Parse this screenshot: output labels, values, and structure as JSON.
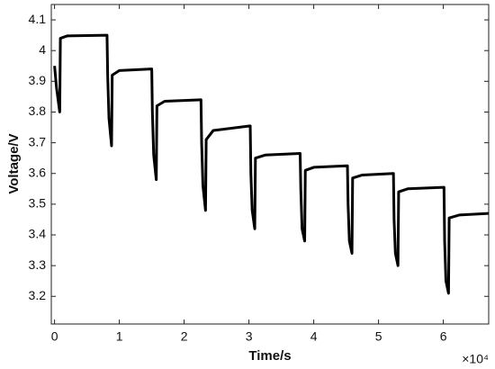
{
  "chart_data": {
    "type": "line",
    "x_label": "Time/s",
    "y_label": "Voltage/V",
    "x_multiplier": "×10⁴",
    "x": [
      0,
      0.03,
      0.08,
      0.09,
      0.2,
      0.81,
      0.82,
      0.84,
      0.88,
      0.89,
      1.0,
      1.5,
      1.51,
      1.53,
      1.57,
      1.58,
      1.7,
      2.26,
      2.27,
      2.29,
      2.33,
      2.34,
      2.45,
      3.02,
      3.03,
      3.05,
      3.09,
      3.1,
      3.25,
      3.79,
      3.8,
      3.82,
      3.86,
      3.87,
      4.0,
      4.52,
      4.53,
      4.55,
      4.59,
      4.6,
      4.75,
      5.23,
      5.24,
      5.26,
      5.3,
      5.31,
      5.45,
      6.01,
      6.02,
      6.04,
      6.08,
      6.09,
      6.25,
      6.7
    ],
    "values": [
      3.95,
      3.88,
      3.8,
      4.04,
      4.048,
      4.05,
      3.92,
      3.78,
      3.69,
      3.92,
      3.935,
      3.94,
      3.8,
      3.66,
      3.58,
      3.82,
      3.835,
      3.84,
      3.7,
      3.56,
      3.48,
      3.71,
      3.74,
      3.755,
      3.6,
      3.48,
      3.42,
      3.65,
      3.66,
      3.665,
      3.55,
      3.42,
      3.38,
      3.61,
      3.62,
      3.625,
      3.5,
      3.38,
      3.34,
      3.585,
      3.595,
      3.6,
      3.45,
      3.34,
      3.3,
      3.54,
      3.55,
      3.555,
      3.38,
      3.25,
      3.21,
      3.455,
      3.465,
      3.47
    ],
    "color": "#000000",
    "xlim": [
      -0.05,
      6.7
    ],
    "xticks": [
      0,
      1,
      2,
      3,
      4,
      5,
      6
    ],
    "ylim": [
      3.11,
      4.15
    ],
    "yticks": [
      3.2,
      3.3,
      3.4,
      3.5,
      3.6,
      3.7,
      3.8,
      3.9,
      4,
      4.1
    ]
  }
}
